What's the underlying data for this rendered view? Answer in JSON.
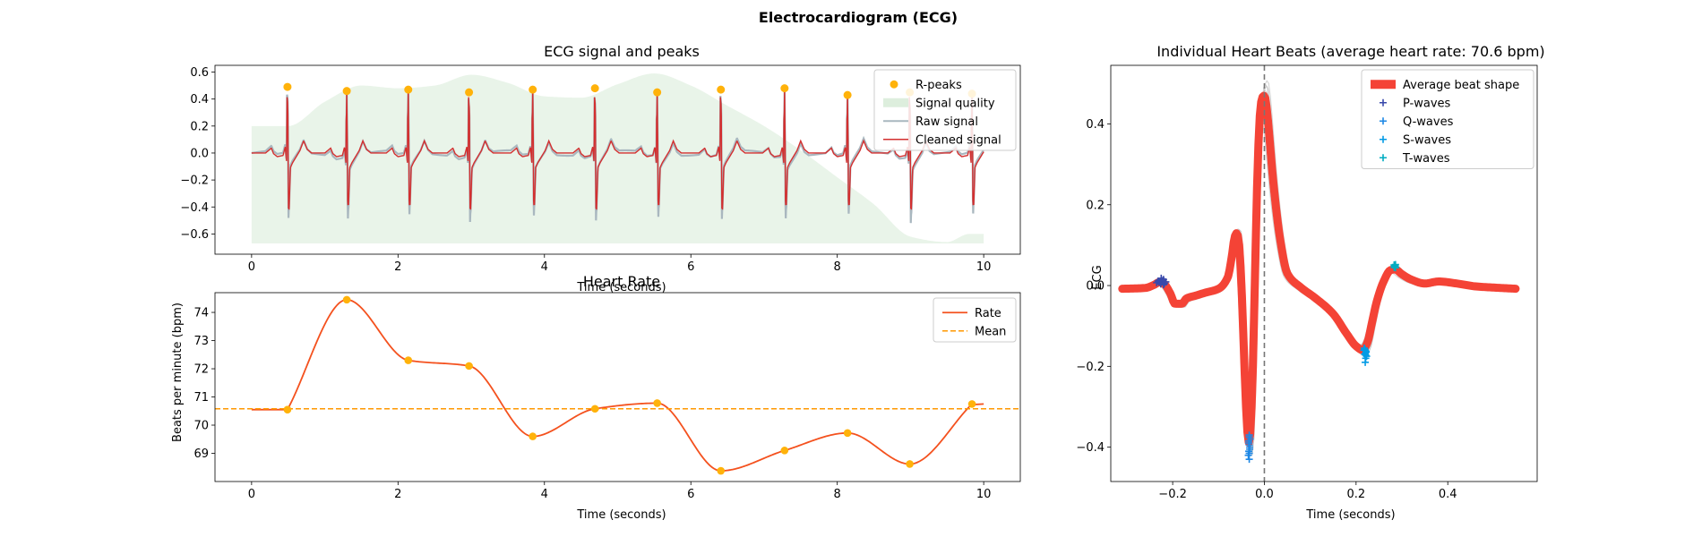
{
  "figure": {
    "title": "Electrocardiogram (ECG)"
  },
  "colors": {
    "rpeak": "#FFB20A",
    "quality": "#DDEEDD",
    "raw": "#A9B7BF",
    "clean": "#D32F2F",
    "rate": "#F4511E",
    "mean": "#FF9800",
    "avg": "#F44336",
    "ind": "#BDBDBD",
    "pw": "#3949AB",
    "qw": "#1E88E5",
    "sw": "#039BE5",
    "tw": "#00ACC1"
  },
  "chart_data": [
    {
      "type": "line",
      "title": "ECG signal and peaks",
      "xlabel": "Time (seconds)",
      "ylabel": "",
      "xlim": [
        -0.5,
        10.5
      ],
      "ylim": [
        -0.75,
        0.65
      ],
      "xticks": [
        0,
        2,
        4,
        6,
        8,
        10
      ],
      "yticks": [
        -0.6,
        -0.4,
        -0.2,
        0.0,
        0.2,
        0.4,
        0.6
      ],
      "xtick_labels": [
        "0",
        "2",
        "4",
        "6",
        "8",
        "10"
      ],
      "ytick_labels": [
        "−0.6",
        "−0.4",
        "−0.2",
        "0.0",
        "0.2",
        "0.4",
        "0.6"
      ],
      "legend": {
        "position": "top-right",
        "entries": [
          "R-peaks",
          "Signal quality",
          "Raw signal",
          "Cleaned signal"
        ]
      },
      "r_peaks": {
        "x": [
          0.49,
          1.3,
          2.14,
          2.97,
          3.84,
          4.69,
          5.54,
          6.41,
          7.28,
          8.14,
          8.99,
          9.84
        ],
        "y": [
          0.49,
          0.46,
          0.47,
          0.45,
          0.47,
          0.48,
          0.45,
          0.47,
          0.48,
          0.43,
          0.45,
          0.44
        ]
      },
      "signal_quality": {
        "x": [
          0,
          0.5,
          1.0,
          1.5,
          2.0,
          2.5,
          3.0,
          3.5,
          4.0,
          4.5,
          5.0,
          5.5,
          6.0,
          6.5,
          7.0,
          7.5,
          8.0,
          8.5,
          9.0,
          9.5,
          9.8,
          10.0
        ],
        "y": [
          0.2,
          0.2,
          0.38,
          0.5,
          0.48,
          0.5,
          0.58,
          0.52,
          0.42,
          0.41,
          0.51,
          0.59,
          0.5,
          0.35,
          0.2,
          0.02,
          -0.18,
          -0.38,
          -0.62,
          -0.66,
          -0.6,
          -0.6
        ]
      },
      "baseline": -0.67
    },
    {
      "type": "line",
      "title": "Heart Rate",
      "xlabel": "Time (seconds)",
      "ylabel": "Beats per minute (bpm)",
      "xlim": [
        -0.5,
        10.5
      ],
      "ylim": [
        68.0,
        74.7
      ],
      "xticks": [
        0,
        2,
        4,
        6,
        8,
        10
      ],
      "yticks": [
        69,
        70,
        71,
        72,
        73,
        74
      ],
      "xtick_labels": [
        "0",
        "2",
        "4",
        "6",
        "8",
        "10"
      ],
      "ytick_labels": [
        "69",
        "70",
        "71",
        "72",
        "73",
        "74"
      ],
      "legend": {
        "position": "top-right",
        "entries": [
          "Rate",
          "Mean"
        ]
      },
      "series": [
        {
          "name": "Rate",
          "x": [
            0.49,
            1.3,
            2.14,
            2.97,
            3.84,
            4.69,
            5.54,
            6.41,
            7.28,
            8.14,
            8.99,
            9.84
          ],
          "y": [
            70.55,
            74.45,
            72.3,
            72.1,
            69.6,
            70.58,
            70.78,
            68.38,
            69.1,
            69.72,
            68.62,
            70.75
          ]
        }
      ],
      "line_start": [
        0.0,
        70.55
      ],
      "line_end": [
        10.0,
        70.75
      ],
      "mean": 70.58
    },
    {
      "type": "line",
      "title": "Individual Heart Beats (average heart rate: 70.6 bpm)",
      "xlabel": "Time (seconds)",
      "ylabel": "ECG",
      "xlim": [
        -0.335,
        0.595
      ],
      "ylim": [
        -0.485,
        0.545
      ],
      "xticks": [
        -0.2,
        0.0,
        0.2,
        0.4
      ],
      "yticks": [
        -0.4,
        -0.2,
        0.0,
        0.2,
        0.4
      ],
      "xtick_labels": [
        "−0.2",
        "0.0",
        "0.2",
        "0.4"
      ],
      "ytick_labels": [
        "−0.4",
        "−0.2",
        "0.0",
        "0.2",
        "0.4"
      ],
      "legend": {
        "position": "top-right",
        "entries": [
          "Average beat shape",
          "P-waves",
          "Q-waves",
          "S-waves",
          "T-waves"
        ]
      },
      "average_beat": {
        "x": [
          -0.31,
          -0.26,
          -0.24,
          -0.23,
          -0.22,
          -0.205,
          -0.195,
          -0.18,
          -0.17,
          -0.15,
          -0.13,
          -0.1,
          -0.08,
          -0.07,
          -0.065,
          -0.06,
          -0.055,
          -0.05,
          -0.045,
          -0.04,
          -0.035,
          -0.033,
          -0.03,
          -0.025,
          -0.02,
          -0.015,
          -0.01,
          -0.005,
          0.0,
          0.005,
          0.01,
          0.02,
          0.035,
          0.05,
          0.08,
          0.11,
          0.15,
          0.18,
          0.2,
          0.215,
          0.225,
          0.235,
          0.245,
          0.26,
          0.275,
          0.285,
          0.3,
          0.32,
          0.35,
          0.38,
          0.42,
          0.46,
          0.5,
          0.55
        ],
        "y": [
          -0.008,
          -0.006,
          0.002,
          0.008,
          0.005,
          -0.02,
          -0.045,
          -0.045,
          -0.032,
          -0.025,
          -0.018,
          -0.008,
          0.02,
          0.08,
          0.12,
          0.13,
          0.1,
          0.0,
          -0.15,
          -0.3,
          -0.385,
          -0.39,
          -0.35,
          -0.2,
          0.05,
          0.28,
          0.42,
          0.465,
          0.47,
          0.44,
          0.38,
          0.25,
          0.11,
          0.03,
          -0.005,
          -0.03,
          -0.07,
          -0.12,
          -0.15,
          -0.16,
          -0.14,
          -0.09,
          -0.04,
          0.01,
          0.038,
          0.04,
          0.028,
          0.015,
          0.005,
          0.01,
          0.005,
          -0.002,
          -0.005,
          -0.008
        ]
      },
      "p_waves": {
        "x": [
          -0.225,
          -0.23,
          -0.22,
          -0.218,
          -0.228,
          -0.235,
          -0.225,
          -0.22,
          -0.215,
          -0.232,
          -0.226,
          -0.221
        ],
        "y": [
          0.012,
          0.008,
          0.015,
          0.005,
          0.01,
          0.007,
          0.018,
          0.002,
          0.009,
          0.011,
          0.004,
          0.013
        ]
      },
      "q_waves": {
        "x": [
          -0.033,
          -0.034,
          -0.032,
          -0.035,
          -0.033,
          -0.031,
          -0.034,
          -0.033,
          -0.032,
          -0.034,
          -0.033,
          -0.033
        ],
        "y": [
          -0.37,
          -0.39,
          -0.4,
          -0.42,
          -0.43,
          -0.38,
          -0.41,
          -0.395,
          -0.405,
          -0.385,
          -0.375,
          -0.415
        ]
      },
      "s_waves": {
        "x": [
          0.218,
          0.22,
          0.222,
          0.219,
          0.221,
          0.22,
          0.223,
          0.217,
          0.22,
          0.221,
          0.219,
          0.222
        ],
        "y": [
          -0.155,
          -0.16,
          -0.165,
          -0.17,
          -0.18,
          -0.19,
          -0.175,
          -0.16,
          -0.168,
          -0.172,
          -0.158,
          -0.163
        ]
      },
      "t_waves": {
        "x": [
          0.283,
          0.285,
          0.284,
          0.286,
          0.285,
          0.284,
          0.285,
          0.283,
          0.286,
          0.284,
          0.285,
          0.284
        ],
        "y": [
          0.045,
          0.05,
          0.048,
          0.052,
          0.046,
          0.049,
          0.047,
          0.051,
          0.044,
          0.05,
          0.048,
          0.046
        ]
      }
    }
  ]
}
